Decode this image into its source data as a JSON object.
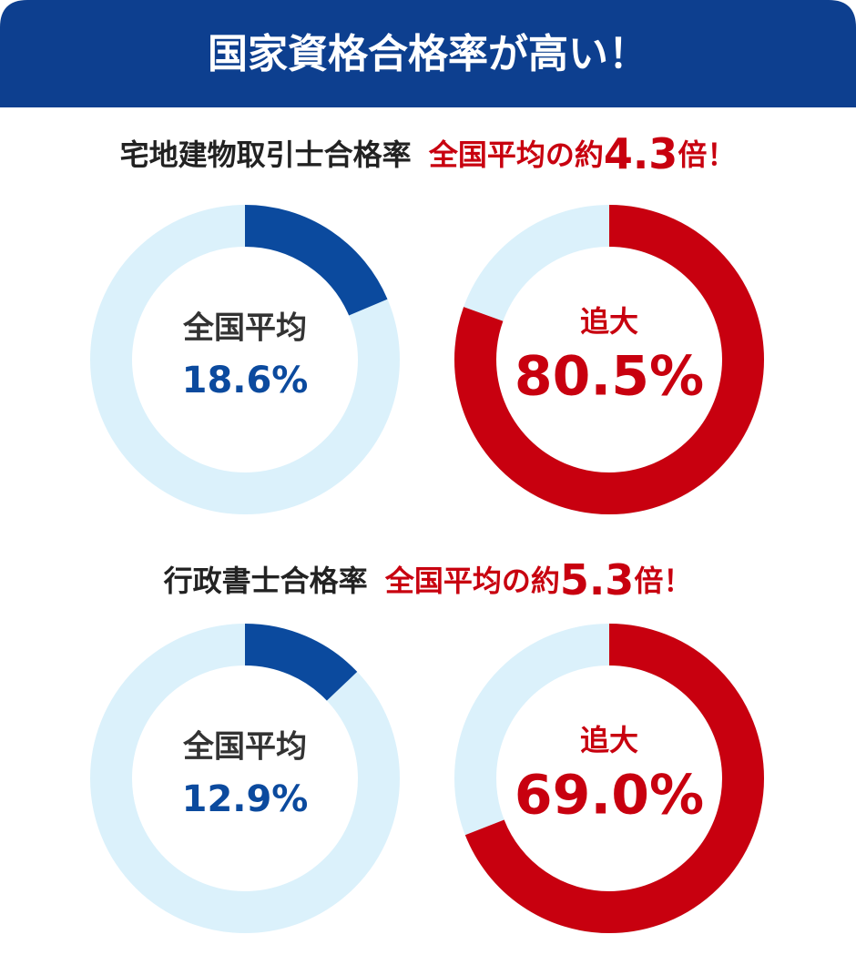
{
  "header": {
    "title": "国家資格合格率が高い！"
  },
  "sections": [
    {
      "label": "宅地建物取引士合格率",
      "highlight": "全国平均の約",
      "multiplier": 4.3,
      "suffix": "倍！"
    },
    {
      "label": "行政書士合格率",
      "highlight": "全国平均の約",
      "multiplier": 5.3,
      "suffix": "倍！"
    }
  ],
  "chart_data": [
    {
      "type": "donut",
      "label": "全国平均",
      "values": [
        18.6
      ],
      "value_labels": [
        "18.6%"
      ],
      "color": "#0b4a9e",
      "track_color": "#dbf1fb",
      "ylim": [
        0,
        100
      ]
    },
    {
      "type": "donut",
      "label": "追大",
      "values": [
        80.5
      ],
      "value_labels": [
        "80.5%"
      ],
      "color": "#c8000f",
      "track_color": "#dbf1fb",
      "ylim": [
        0,
        100
      ]
    },
    {
      "type": "donut",
      "label": "全国平均",
      "values": [
        12.9
      ],
      "value_labels": [
        "12.9%"
      ],
      "color": "#0b4a9e",
      "track_color": "#dbf1fb",
      "ylim": [
        0,
        100
      ]
    },
    {
      "type": "donut",
      "label": "追大",
      "values": [
        69.0
      ],
      "value_labels": [
        "69.0%"
      ],
      "color": "#c8000f",
      "track_color": "#dbf1fb",
      "ylim": [
        0,
        100
      ]
    }
  ]
}
